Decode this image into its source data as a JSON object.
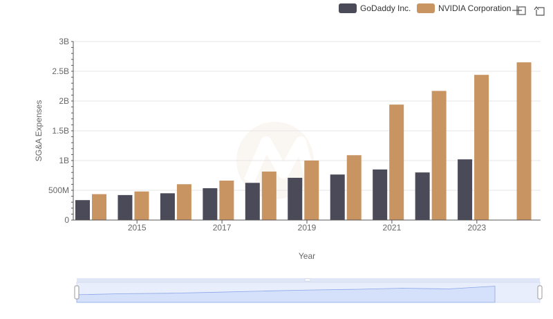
{
  "chart_data": {
    "type": "bar",
    "title": "",
    "xlabel": "Year",
    "ylabel": "SG&A Expenses",
    "categories": [
      "2014",
      "2015",
      "2016",
      "2017",
      "2018",
      "2019",
      "2020",
      "2021",
      "2022",
      "2023",
      "2024"
    ],
    "x_tick_labels": [
      "2015",
      "2017",
      "2019",
      "2021",
      "2023"
    ],
    "ylim": [
      0,
      3000000000
    ],
    "y_ticks": [
      {
        "value": 0,
        "label": "0"
      },
      {
        "value": 500000000,
        "label": "500M"
      },
      {
        "value": 1000000000,
        "label": "1B"
      },
      {
        "value": 1500000000,
        "label": "1.5B"
      },
      {
        "value": 2000000000,
        "label": "2B"
      },
      {
        "value": 2500000000,
        "label": "2.5B"
      },
      {
        "value": 3000000000,
        "label": "3B"
      }
    ],
    "series": [
      {
        "name": "GoDaddy Inc.",
        "color": "#4a4a58",
        "values": [
          335000000,
          420000000,
          450000000,
          535000000,
          625000000,
          710000000,
          765000000,
          850000000,
          800000000,
          1020000000,
          null
        ]
      },
      {
        "name": "NVIDIA Corporation",
        "color": "#c89462",
        "values": [
          435000000,
          480000000,
          602000000,
          663000000,
          815000000,
          1000000000,
          1090000000,
          1940000000,
          2170000000,
          2440000000,
          2650000000
        ]
      }
    ],
    "legend_position": "top-right",
    "grid": true
  },
  "toolbar": {
    "icons": [
      "crosshair-icon",
      "reset-zoom-icon"
    ]
  },
  "colors": {
    "navigator_fill": "#dbe4fb",
    "navigator_line": "#8aa6e8",
    "grid": "#e6e6e6"
  }
}
